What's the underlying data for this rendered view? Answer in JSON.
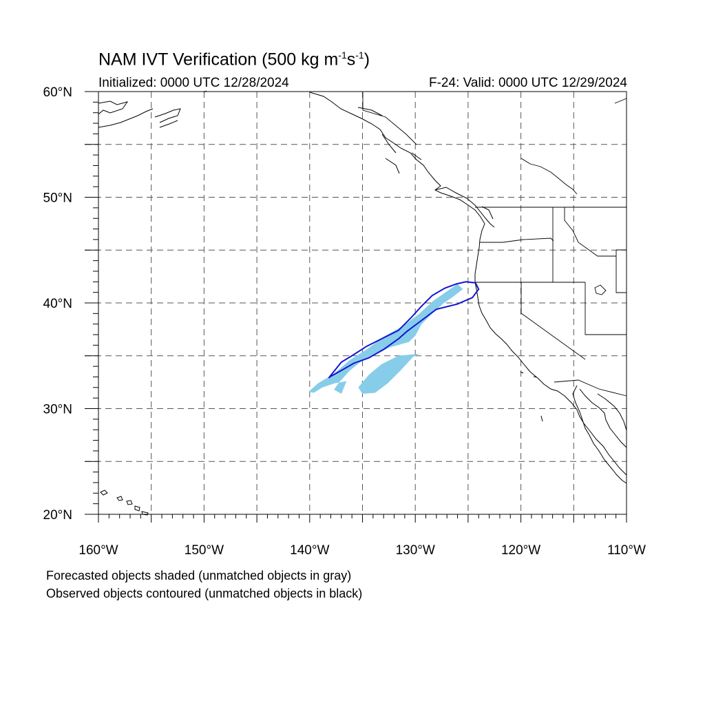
{
  "title": {
    "main_prefix": "NAM IVT Verification (500 kg m",
    "exp1": "-1",
    "mid": "s",
    "exp2": "-1",
    "suffix": ")",
    "initialized": "Initialized: 0000 UTC 12/28/2024",
    "valid": "F-24: Valid: 0000 UTC 12/29/2024"
  },
  "axes": {
    "lat_labels": [
      {
        "lat": 60,
        "text": "60°N"
      },
      {
        "lat": 50,
        "text": "50°N"
      },
      {
        "lat": 40,
        "text": "40°N"
      },
      {
        "lat": 30,
        "text": "30°N"
      },
      {
        "lat": 20,
        "text": "20°N"
      }
    ],
    "lon_labels": [
      {
        "lon": -160,
        "text": "160°W"
      },
      {
        "lon": -150,
        "text": "150°W"
      },
      {
        "lon": -140,
        "text": "140°W"
      },
      {
        "lon": -130,
        "text": "130°W"
      },
      {
        "lon": -120,
        "text": "120°W"
      },
      {
        "lon": -110,
        "text": "110°W"
      }
    ],
    "lon_range": [
      -160,
      -110
    ],
    "lat_range": [
      20,
      60
    ],
    "grid": "dashed every 5 degrees"
  },
  "legend": {
    "line1": "Forecasted objects shaded (unmatched objects in gray)",
    "line2": "Observed objects contoured (unmatched objects in black)"
  },
  "colors": {
    "forecast_fill": "#87cdea",
    "observed_contour": "#1414d2",
    "coastline": "#000000",
    "grid": "#555555"
  },
  "forecast_object": {
    "description_coords": "lon/lat vertices",
    "polygon": [
      [
        -140.1,
        31.6
      ],
      [
        -139.2,
        32.4
      ],
      [
        -137.7,
        33.3
      ],
      [
        -136.2,
        34.6
      ],
      [
        -134.6,
        35.6
      ],
      [
        -133.0,
        36.8
      ],
      [
        -131.2,
        37.8
      ],
      [
        -129.6,
        39.0
      ],
      [
        -128.3,
        40.2
      ],
      [
        -127.0,
        41.1
      ],
      [
        -126.0,
        41.8
      ],
      [
        -125.5,
        41.3
      ],
      [
        -126.4,
        40.6
      ],
      [
        -127.4,
        39.9
      ],
      [
        -128.4,
        39.0
      ],
      [
        -129.4,
        38.0
      ],
      [
        -130.0,
        36.9
      ],
      [
        -130.6,
        36.3
      ],
      [
        -132.4,
        35.8
      ],
      [
        -134.0,
        35.0
      ],
      [
        -135.2,
        34.4
      ],
      [
        -136.2,
        33.6
      ],
      [
        -137.2,
        32.5
      ],
      [
        -137.7,
        31.8
      ],
      [
        -137.0,
        31.4
      ],
      [
        -136.5,
        32.6
      ],
      [
        -137.6,
        32.4
      ],
      [
        -138.8,
        32.0
      ],
      [
        -139.6,
        31.5
      ]
    ]
  },
  "observed_object": {
    "polygon": [
      [
        -138.2,
        32.9
      ],
      [
        -137.0,
        34.4
      ],
      [
        -136.0,
        35.0
      ],
      [
        -134.6,
        35.9
      ],
      [
        -133.0,
        36.7
      ],
      [
        -131.6,
        37.4
      ],
      [
        -130.4,
        38.6
      ],
      [
        -129.4,
        39.7
      ],
      [
        -128.4,
        40.7
      ],
      [
        -127.2,
        41.4
      ],
      [
        -126.1,
        41.8
      ],
      [
        -125.2,
        42.0
      ],
      [
        -124.3,
        41.9
      ],
      [
        -124.0,
        41.3
      ],
      [
        -124.6,
        40.5
      ],
      [
        -126.0,
        39.9
      ],
      [
        -128.0,
        39.4
      ],
      [
        -129.6,
        38.2
      ],
      [
        -130.8,
        37.3
      ],
      [
        -131.6,
        36.6
      ],
      [
        -133.0,
        35.6
      ],
      [
        -134.4,
        34.8
      ],
      [
        -135.8,
        34.3
      ],
      [
        -137.2,
        33.5
      ],
      [
        -138.1,
        33.0
      ]
    ]
  }
}
